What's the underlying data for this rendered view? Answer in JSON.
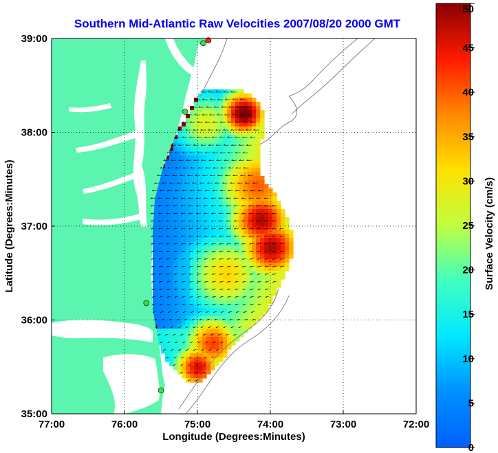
{
  "map": {
    "title": "Southern Mid-Atlantic Raw Velocities 2007/08/20 2000 GMT",
    "xlabel": "Longitude (Degrees:Minutes)",
    "ylabel": "Latitude (Degrees:Minutes)",
    "lon_range": [
      -77,
      -72
    ],
    "lat_range": [
      35,
      39
    ],
    "x_ticks": [
      "77:00",
      "76:00",
      "75:00",
      "74:00",
      "73:00",
      "72:00"
    ],
    "y_ticks": [
      "39:00",
      "38:00",
      "37:00",
      "36:00",
      "35:00"
    ],
    "land_color": "#5cf5b0",
    "water_color": "#ffffff",
    "sites": [
      {
        "lon": -74.85,
        "lat": 38.98,
        "color": "#ff2020"
      },
      {
        "lon": -74.92,
        "lat": 38.95,
        "color": "#3adf3a"
      },
      {
        "lon": -75.17,
        "lat": 38.22,
        "color": "#3adf3a"
      },
      {
        "lon": -75.7,
        "lat": 36.18,
        "color": "#3adf3a"
      },
      {
        "lon": -75.5,
        "lat": 35.25,
        "color": "#3adf3a"
      }
    ]
  },
  "colorbar": {
    "label": "Surface Velocity (cm/s)",
    "min": 0,
    "max": 50,
    "ticks": [
      "0",
      "5",
      "10",
      "15",
      "20",
      "25",
      "30",
      "35",
      "40",
      "45",
      "50"
    ]
  }
}
